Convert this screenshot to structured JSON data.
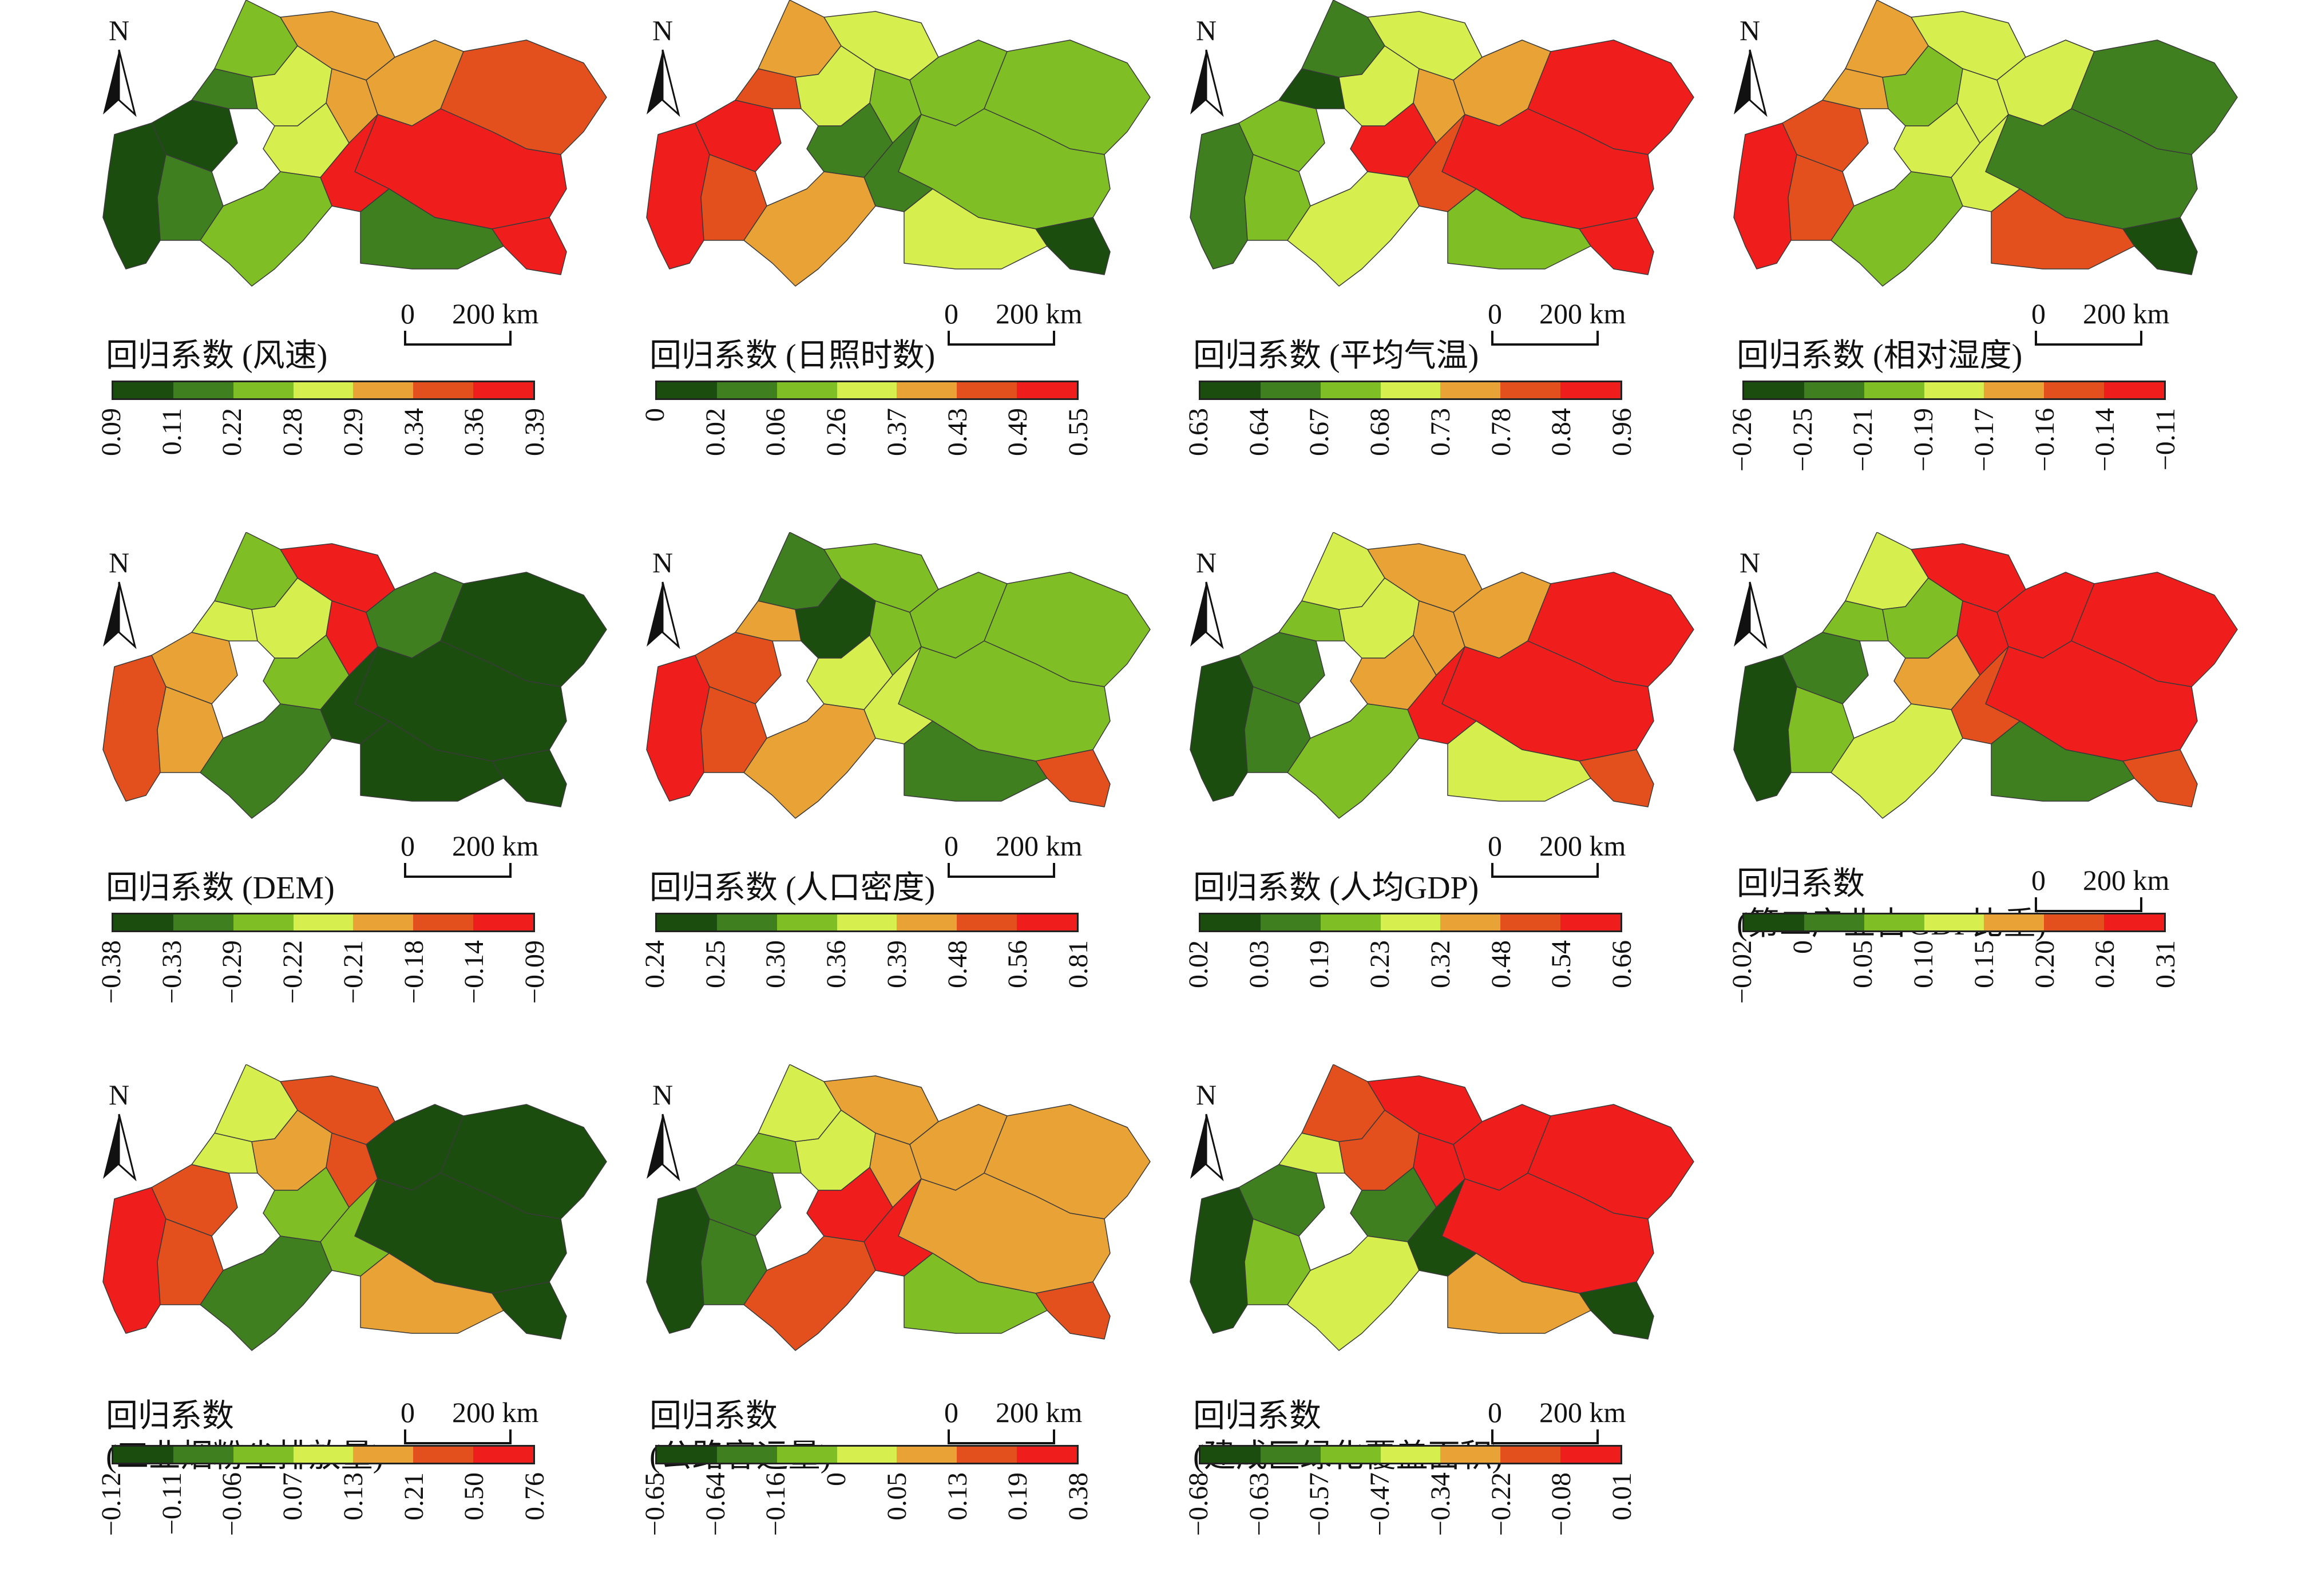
{
  "units": {
    "scale_zero": "0",
    "scale_distance": "200 km",
    "north_letter": "N"
  },
  "ramp": [
    "#1b4d0e",
    "#3f7f1f",
    "#7fbf25",
    "#d6ef4f",
    "#e8a235",
    "#e4501d",
    "#f01d1d"
  ],
  "panels": [
    {
      "title_lines": [
        "回归系数 (风速)"
      ],
      "ticks": [
        "0.09",
        "0.11",
        "0.22",
        "0.28",
        "0.29",
        "0.34",
        "0.36",
        "0.39"
      ],
      "regions": [
        0,
        0,
        1,
        1,
        2,
        3,
        4,
        4,
        4,
        5,
        6,
        6,
        6,
        3,
        2,
        1
      ]
    },
    {
      "title_lines": [
        "回归系数 (日照时数)"
      ],
      "ticks": [
        "0",
        "0.02",
        "0.06",
        "0.26",
        "0.37",
        "0.43",
        "0.49",
        "0.55"
      ],
      "regions": [
        6,
        6,
        5,
        5,
        4,
        3,
        3,
        2,
        2,
        2,
        2,
        0,
        1,
        1,
        4,
        3
      ]
    },
    {
      "title_lines": [
        "回归系数 (平均气温)"
      ],
      "ticks": [
        "0.63",
        "0.64",
        "0.67",
        "0.68",
        "0.73",
        "0.78",
        "0.84",
        "0.96"
      ],
      "regions": [
        1,
        2,
        2,
        0,
        1,
        3,
        3,
        4,
        4,
        6,
        6,
        6,
        5,
        6,
        3,
        2
      ]
    },
    {
      "title_lines": [
        "回归系数 (相对湿度)"
      ],
      "ticks": [
        "−0.26",
        "−0.25",
        "−0.21",
        "−0.19",
        "−0.17",
        "−0.16",
        "−0.14",
        "−0.11"
      ],
      "regions": [
        6,
        5,
        5,
        4,
        4,
        2,
        3,
        3,
        3,
        1,
        1,
        0,
        3,
        3,
        2,
        5
      ]
    },
    {
      "title_lines": [
        "回归系数 (DEM)"
      ],
      "ticks": [
        "−0.38",
        "−0.33",
        "−0.29",
        "−0.22",
        "−0.21",
        "−0.18",
        "−0.14",
        "−0.09"
      ],
      "regions": [
        5,
        4,
        4,
        3,
        2,
        3,
        6,
        6,
        1,
        0,
        0,
        0,
        0,
        2,
        1,
        0
      ]
    },
    {
      "title_lines": [
        "回归系数 (人口密度)"
      ],
      "ticks": [
        "0.24",
        "0.25",
        "0.30",
        "0.36",
        "0.39",
        "0.48",
        "0.56",
        "0.81"
      ],
      "regions": [
        6,
        5,
        5,
        4,
        1,
        0,
        2,
        2,
        2,
        2,
        2,
        5,
        3,
        3,
        4,
        1
      ]
    },
    {
      "title_lines": [
        "回归系数 (人均GDP)"
      ],
      "ticks": [
        "0.02",
        "0.03",
        "0.19",
        "0.23",
        "0.32",
        "0.48",
        "0.54",
        "0.66"
      ],
      "regions": [
        0,
        1,
        1,
        2,
        3,
        3,
        4,
        4,
        4,
        6,
        6,
        5,
        6,
        4,
        2,
        3
      ]
    },
    {
      "title_lines": [
        "回归系数",
        "(第二产业占GDP比重)"
      ],
      "ticks": [
        "−0.02",
        "0",
        "0.05",
        "0.10",
        "0.15",
        "0.20",
        "0.26",
        "0.31"
      ],
      "regions": [
        0,
        1,
        2,
        2,
        3,
        2,
        6,
        6,
        6,
        6,
        6,
        5,
        5,
        4,
        3,
        1
      ]
    },
    {
      "title_lines": [
        "回归系数",
        "(工业烟粉尘排放量)"
      ],
      "ticks": [
        "−0.12",
        "−0.11",
        "−0.06",
        "0.07",
        "0.13",
        "0.21",
        "0.50",
        "0.76"
      ],
      "regions": [
        6,
        5,
        5,
        3,
        3,
        4,
        5,
        5,
        0,
        0,
        0,
        0,
        2,
        2,
        1,
        4
      ]
    },
    {
      "title_lines": [
        "回归系数",
        "(公路客运量)"
      ],
      "ticks": [
        "−0.65",
        "−0.64",
        "−0.16",
        "0",
        "0.05",
        "0.13",
        "0.19",
        "0.38"
      ],
      "regions": [
        0,
        1,
        1,
        2,
        3,
        3,
        4,
        4,
        4,
        4,
        4,
        5,
        6,
        6,
        5,
        2
      ]
    },
    {
      "title_lines": [
        "回归系数",
        "(建成区绿化覆盖面积)"
      ],
      "ticks": [
        "−0.68",
        "−0.63",
        "−0.57",
        "−0.47",
        "−0.34",
        "−0.22",
        "−0.08",
        "0.01"
      ],
      "regions": [
        0,
        1,
        2,
        3,
        5,
        5,
        6,
        6,
        6,
        6,
        6,
        0,
        0,
        1,
        3,
        4
      ]
    }
  ]
}
